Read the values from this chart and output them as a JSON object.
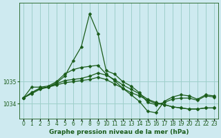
{
  "xlabel": "Graphe pression niveau de la mer (hPa)",
  "background_color": "#ceeaf0",
  "grid_color": "#9ecfca",
  "line_color": "#1a5c1a",
  "x": [
    0,
    1,
    2,
    3,
    4,
    5,
    6,
    7,
    8,
    9,
    10,
    11,
    12,
    13,
    14,
    15,
    16,
    17,
    18,
    19,
    20,
    21,
    22,
    23
  ],
  "line1": [
    1034.25,
    1034.45,
    1034.65,
    1034.75,
    1034.95,
    1035.25,
    1035.95,
    1036.6,
    1038.1,
    1037.2,
    1035.5,
    1035.35,
    1035.0,
    1034.8,
    1034.5,
    1034.05,
    1033.95,
    1034.05,
    1034.2,
    1034.25,
    1034.25,
    1034.15,
    1034.35,
    1034.3
  ],
  "line2": [
    1034.25,
    1034.5,
    1034.7,
    1034.75,
    1034.9,
    1035.05,
    1035.1,
    1035.15,
    1035.25,
    1035.4,
    1035.3,
    1035.1,
    1034.85,
    1034.65,
    1034.45,
    1034.2,
    1034.05,
    1033.95,
    1033.85,
    1033.8,
    1033.75,
    1033.75,
    1033.8,
    1033.8
  ],
  "line3": [
    1034.25,
    1034.5,
    1034.7,
    1034.75,
    1034.85,
    1034.95,
    1035.0,
    1035.05,
    1035.1,
    1035.2,
    1035.1,
    1034.9,
    1034.7,
    1034.5,
    1034.35,
    1034.15,
    1034.0,
    1033.95,
    1033.85,
    1033.8,
    1033.75,
    1033.75,
    1033.8,
    1033.8
  ],
  "line4": [
    1034.25,
    1034.75,
    1034.75,
    1034.8,
    1035.0,
    1035.35,
    1035.55,
    1035.65,
    1035.7,
    1035.75,
    1035.35,
    1035.05,
    1034.7,
    1034.4,
    1034.1,
    1033.65,
    1033.58,
    1034.1,
    1034.3,
    1034.4,
    1034.35,
    1034.2,
    1034.4,
    1034.35
  ],
  "ylim": [
    1033.3,
    1038.6
  ],
  "yticks": [
    1034,
    1035
  ],
  "markersize": 2.5,
  "linewidth": 0.9,
  "xlabel_fontsize": 6.5,
  "tick_fontsize": 5.5
}
